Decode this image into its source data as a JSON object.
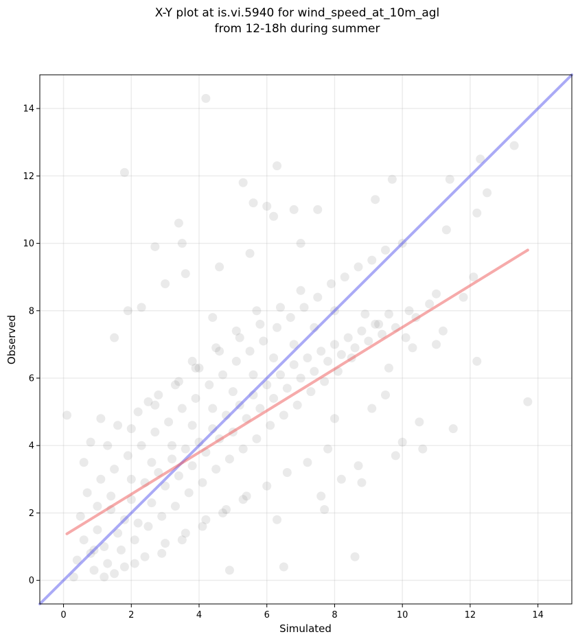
{
  "chart_data": {
    "type": "scatter",
    "title_line1": "X-Y plot at is.vi.5940 for wind_speed_at_10m_agl",
    "title_line2": "from 12-18h during summer",
    "xlabel": "Simulated",
    "ylabel": "Observed",
    "xlim": [
      -0.7,
      15
    ],
    "ylim": [
      -0.7,
      15
    ],
    "xticks": [
      0,
      2,
      4,
      6,
      8,
      10,
      12,
      14
    ],
    "yticks": [
      0,
      2,
      4,
      6,
      8,
      10,
      12,
      14
    ],
    "grid": true,
    "colors": {
      "points": "#808080",
      "identity_line": "#5555ee",
      "fit_line": "#ee5555"
    },
    "identity_line": {
      "x": [
        -0.7,
        15
      ],
      "y": [
        -0.7,
        15
      ]
    },
    "fit_line": {
      "x": [
        0.1,
        13.7
      ],
      "y": [
        1.38,
        9.8
      ]
    },
    "series": [
      {
        "x": [
          4.2,
          1.8,
          13.3,
          12.3,
          11.4,
          12.5,
          6.3,
          5.3,
          5.6,
          3.4,
          9.2,
          9.7,
          12.2,
          11.3,
          10.0,
          7.5,
          6.8,
          6.0,
          6.2,
          7.0,
          3.5,
          2.7,
          3.0,
          5.5,
          4.6,
          3.6,
          2.3,
          1.9,
          1.5,
          0.1,
          13.7,
          12.2,
          11.5,
          10.6,
          8.8,
          8.6,
          9.8,
          8.0,
          7.7,
          9.5,
          9.1,
          10.0,
          10.5,
          11.2,
          11.8,
          12.1,
          6.5,
          4.9,
          0.4,
          0.6,
          0.8,
          1.0,
          1.2,
          1.4,
          1.6,
          1.8,
          2.0,
          2.2,
          2.4,
          2.6,
          2.8,
          3.0,
          3.2,
          3.4,
          3.6,
          3.8,
          4.0,
          4.2,
          4.4,
          4.6,
          4.8,
          5.0,
          5.2,
          5.4,
          5.6,
          5.8,
          6.0,
          6.2,
          6.4,
          6.6,
          6.8,
          7.0,
          7.2,
          7.4,
          7.6,
          7.8,
          8.0,
          8.2,
          8.4,
          8.6,
          8.8,
          9.0,
          9.2,
          9.4,
          9.6,
          9.8,
          10.2,
          10.4,
          10.8,
          11.0,
          0.7,
          1.1,
          1.5,
          1.9,
          2.3,
          2.7,
          3.1,
          3.5,
          3.9,
          4.3,
          4.7,
          5.1,
          5.5,
          5.9,
          6.3,
          6.7,
          7.1,
          7.5,
          7.9,
          8.3,
          8.7,
          9.1,
          9.5,
          0.9,
          1.3,
          1.7,
          2.1,
          2.5,
          2.9,
          3.3,
          3.7,
          4.1,
          4.5,
          4.9,
          5.3,
          5.7,
          6.1,
          6.5,
          6.9,
          7.3,
          7.7,
          8.1,
          8.5,
          0.5,
          1.0,
          1.4,
          2.0,
          2.6,
          3.2,
          3.8,
          4.4,
          5.0,
          5.6,
          6.2,
          6.8,
          7.4,
          8.0,
          1.2,
          1.8,
          2.4,
          3.0,
          3.6,
          4.2,
          4.8,
          5.4,
          6.0,
          6.6,
          7.2,
          7.8,
          0.8,
          1.6,
          2.2,
          2.8,
          3.4,
          4.0,
          4.6,
          5.2,
          5.8,
          6.4,
          7.0,
          0.6,
          1.3,
          2.0,
          2.7,
          3.3,
          3.9,
          4.5,
          5.1,
          5.7,
          0.9,
          1.5,
          2.1,
          2.9,
          3.5,
          4.1,
          4.7,
          5.3,
          6.3,
          8.9,
          9.3,
          10.1,
          7.6,
          8.2,
          8.7,
          9.6,
          10.3,
          11.0,
          4.4,
          3.8,
          2.5,
          1.1,
          0.3
        ],
        "y": [
          14.3,
          12.1,
          12.9,
          12.5,
          11.9,
          11.5,
          12.3,
          11.8,
          11.2,
          10.6,
          11.3,
          11.9,
          10.9,
          10.4,
          10.0,
          11.0,
          11.0,
          11.1,
          10.8,
          10.0,
          10.0,
          9.9,
          8.8,
          9.7,
          9.3,
          9.1,
          8.1,
          8.0,
          7.2,
          4.9,
          5.3,
          6.5,
          4.5,
          3.9,
          2.9,
          0.7,
          3.7,
          4.8,
          2.1,
          5.5,
          5.1,
          4.1,
          4.7,
          7.4,
          8.4,
          9.0,
          0.4,
          0.3,
          0.6,
          1.2,
          0.8,
          1.5,
          1.0,
          2.1,
          1.4,
          1.8,
          2.4,
          1.7,
          2.9,
          2.3,
          3.2,
          2.8,
          3.6,
          3.1,
          3.9,
          3.4,
          4.1,
          3.8,
          4.5,
          4.2,
          4.9,
          4.4,
          5.2,
          4.8,
          5.5,
          5.1,
          5.8,
          5.4,
          6.1,
          5.7,
          6.4,
          6.0,
          6.6,
          6.2,
          6.8,
          6.5,
          7.0,
          6.7,
          7.2,
          6.9,
          7.4,
          7.1,
          7.6,
          7.3,
          7.9,
          7.5,
          8.0,
          7.8,
          8.2,
          8.5,
          2.6,
          3.0,
          3.3,
          3.7,
          4.0,
          4.4,
          4.7,
          5.1,
          5.4,
          5.8,
          6.1,
          6.5,
          6.8,
          7.1,
          7.5,
          7.8,
          8.1,
          8.4,
          8.8,
          9.0,
          9.3,
          9.5,
          9.8,
          0.3,
          0.5,
          0.9,
          1.2,
          1.6,
          1.9,
          2.2,
          2.6,
          2.9,
          3.3,
          3.6,
          3.9,
          4.2,
          4.6,
          4.9,
          5.2,
          5.6,
          5.9,
          6.2,
          6.6,
          1.9,
          2.2,
          2.5,
          3.0,
          3.5,
          4.0,
          4.6,
          5.1,
          5.6,
          6.1,
          6.6,
          7.0,
          7.5,
          8.0,
          0.1,
          0.4,
          0.7,
          1.1,
          1.4,
          1.8,
          2.1,
          2.5,
          2.8,
          3.2,
          3.5,
          3.9,
          4.1,
          4.6,
          5.0,
          5.5,
          5.9,
          6.3,
          6.8,
          7.2,
          7.6,
          8.1,
          8.6,
          3.5,
          4.0,
          4.5,
          5.2,
          5.8,
          6.3,
          6.9,
          7.4,
          8.0,
          0.9,
          0.2,
          0.5,
          0.8,
          1.2,
          1.6,
          2.0,
          2.4,
          1.8,
          7.9,
          7.6,
          7.2,
          2.5,
          3.0,
          3.4,
          6.3,
          6.9,
          7.0,
          7.8,
          6.5,
          5.3,
          4.8,
          0.1
        ]
      }
    ]
  }
}
